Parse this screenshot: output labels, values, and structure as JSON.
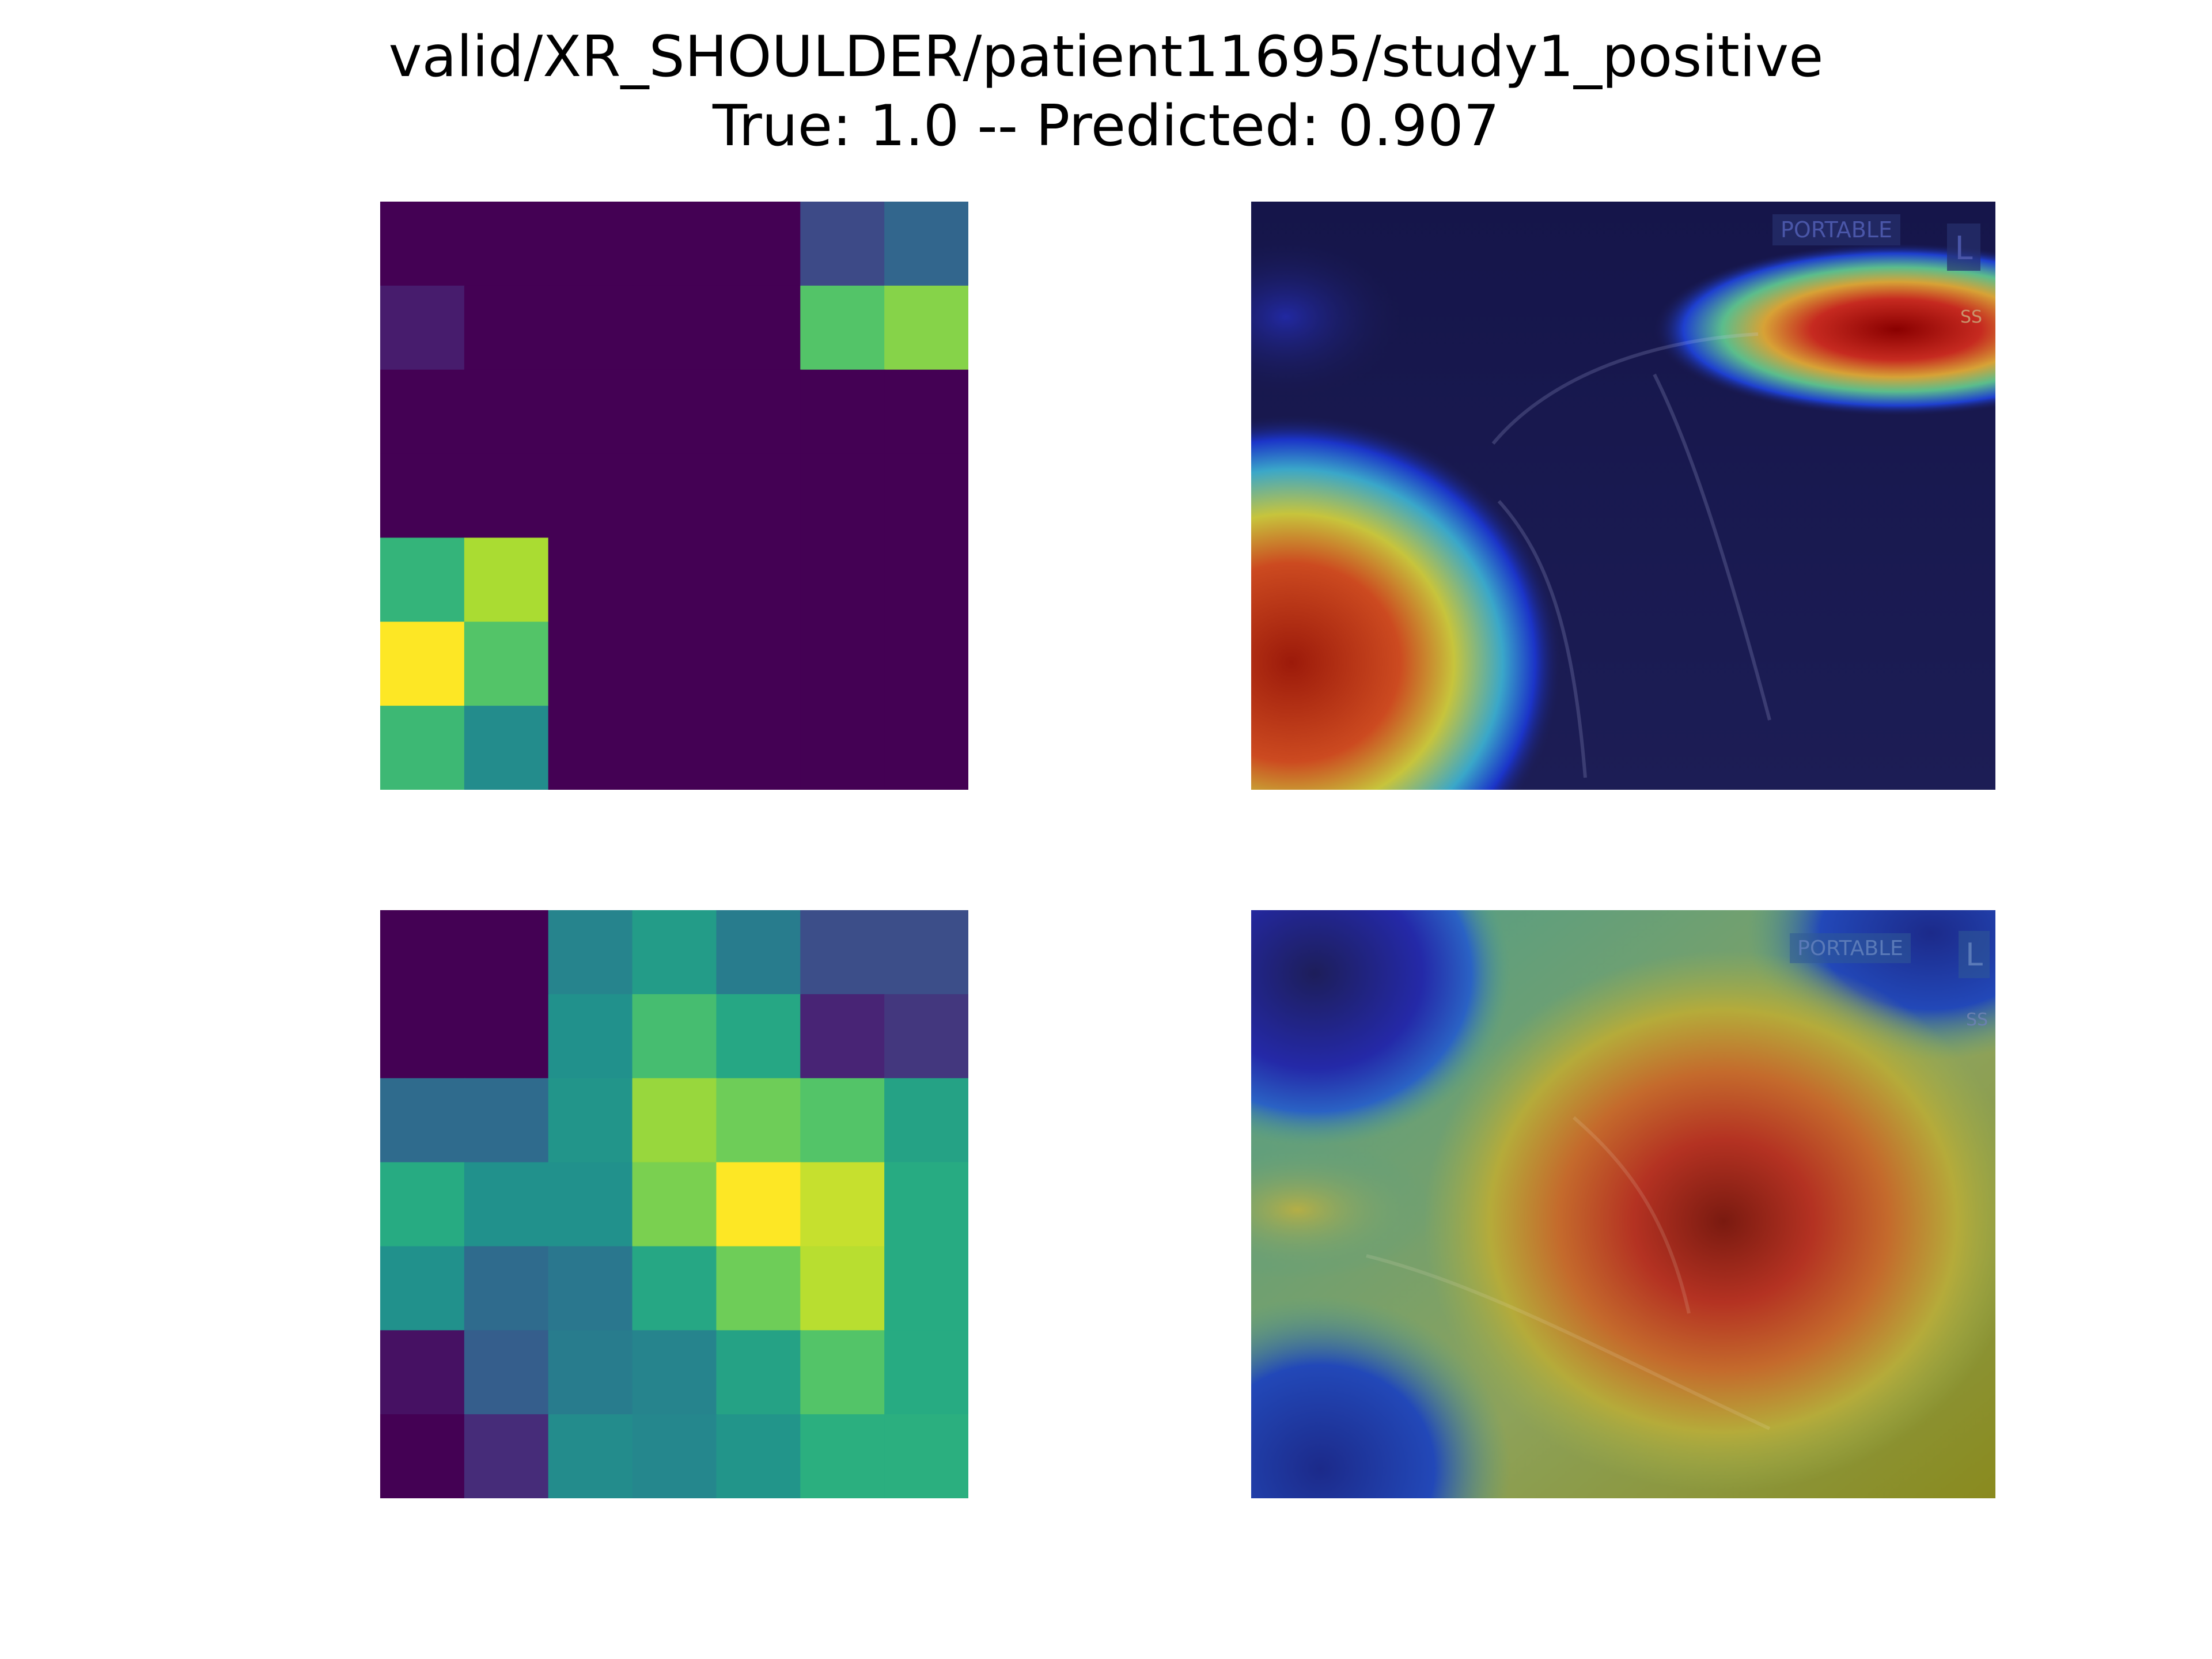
{
  "figure": {
    "title_line_1": "valid/XR_SHOULDER/patient11695/study1_positive",
    "title_line_2": "True: 1.0 -- Predicted: 0.907"
  },
  "chart_data": [
    {
      "type": "heatmap",
      "colormap": "viridis",
      "row": 1,
      "column": 1,
      "axes": "off",
      "vmin": 0,
      "vmax": 1,
      "values": [
        [
          0.0,
          0.0,
          0.0,
          0.0,
          0.0,
          0.23,
          0.33
        ],
        [
          0.1,
          0.0,
          0.0,
          0.0,
          0.0,
          0.73,
          0.82
        ],
        [
          0.0,
          0.0,
          0.0,
          0.0,
          0.0,
          0.0,
          0.0
        ],
        [
          0.0,
          0.0,
          0.0,
          0.0,
          0.0,
          0.0,
          0.0
        ],
        [
          0.66,
          0.88,
          0.0,
          0.0,
          0.0,
          0.0,
          0.0
        ],
        [
          1.0,
          0.73,
          0.0,
          0.0,
          0.0,
          0.0,
          0.0
        ],
        [
          0.68,
          0.48,
          0.0,
          0.0,
          0.0,
          0.0,
          0.0
        ]
      ]
    },
    {
      "type": "heatmap",
      "colormap": "jet",
      "row": 1,
      "column": 2,
      "axes": "off",
      "description_of_content": "Class activation overlay on shoulder radiograph",
      "image_labels": [
        "PORTABLE",
        "L",
        "SS"
      ]
    },
    {
      "type": "heatmap",
      "colormap": "viridis",
      "row": 2,
      "column": 1,
      "axes": "off",
      "vmin": 0,
      "vmax": 1,
      "values": [
        [
          0.0,
          0.0,
          0.45,
          0.55,
          0.42,
          0.24,
          0.24
        ],
        [
          0.0,
          0.0,
          0.5,
          0.7,
          0.6,
          0.13,
          0.18
        ],
        [
          0.35,
          0.35,
          0.52,
          0.85,
          0.78,
          0.73,
          0.58
        ],
        [
          0.62,
          0.5,
          0.5,
          0.8,
          1.0,
          0.92,
          0.62
        ],
        [
          0.5,
          0.35,
          0.4,
          0.6,
          0.78,
          0.9,
          0.62
        ],
        [
          0.06,
          0.3,
          0.42,
          0.45,
          0.58,
          0.73,
          0.62
        ],
        [
          0.0,
          0.15,
          0.48,
          0.46,
          0.52,
          0.64,
          0.64
        ]
      ]
    },
    {
      "type": "heatmap",
      "colormap": "jet",
      "row": 2,
      "column": 2,
      "axes": "off",
      "description_of_content": "Class activation overlay on shoulder radiograph",
      "image_labels": [
        "PORTABLE",
        "L",
        "SS"
      ]
    }
  ]
}
